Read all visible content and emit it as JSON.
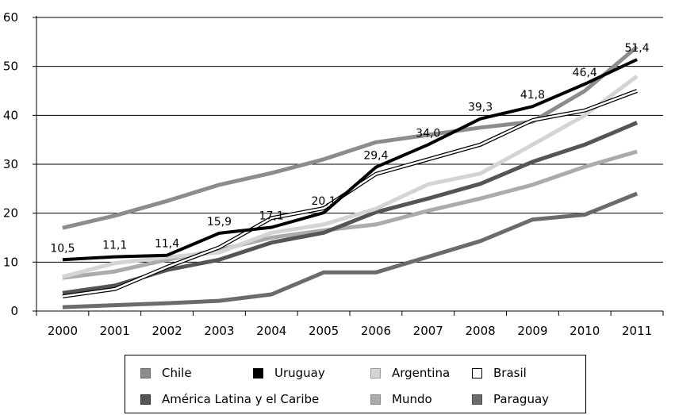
{
  "chart_data": {
    "type": "line",
    "title": "",
    "xlabel": "",
    "ylabel": "",
    "categories": [
      "2000",
      "2001",
      "2002",
      "2003",
      "2004",
      "2005",
      "2006",
      "2007",
      "2008",
      "2009",
      "2010",
      "2011"
    ],
    "ylim": [
      0,
      60
    ],
    "yticks": [
      "0",
      "10",
      "20",
      "30",
      "40",
      "50",
      "60"
    ],
    "grid": true,
    "legend_position": "bottom",
    "series": [
      {
        "name": "Chile",
        "color": "#8c8c8c",
        "values": [
          17.0,
          19.5,
          22.5,
          25.8,
          28.2,
          31.0,
          34.5,
          36.0,
          37.5,
          38.7,
          45.0,
          54.0
        ]
      },
      {
        "name": "Uruguay",
        "color": "#000000",
        "values": [
          10.5,
          11.1,
          11.4,
          15.9,
          17.1,
          20.1,
          29.4,
          34.0,
          39.3,
          41.8,
          46.4,
          51.4
        ],
        "labels": [
          "10,5",
          "11,1",
          "11,4",
          "15,9",
          "17,1",
          "20,1",
          "29,4",
          "34,0",
          "39,3",
          "41,8",
          "46,4",
          "51,4"
        ]
      },
      {
        "name": "Argentina",
        "color": "#d4d4d4",
        "values": [
          7.0,
          9.8,
          11.0,
          12.0,
          16.0,
          17.7,
          20.9,
          25.9,
          28.1,
          34.0,
          40.0,
          48.0
        ]
      },
      {
        "name": "Brasil",
        "color": "#ffffff",
        "values": [
          3.0,
          4.5,
          9.0,
          13.0,
          19.0,
          21.0,
          28.0,
          31.0,
          34.0,
          39.0,
          41.0,
          45.0
        ]
      },
      {
        "name": "América Latina y el Caribe",
        "color": "#555555",
        "values": [
          3.7,
          5.2,
          8.4,
          10.5,
          14.0,
          16.0,
          20.2,
          23.0,
          26.0,
          30.5,
          34.0,
          38.5
        ]
      },
      {
        "name": "Mundo",
        "color": "#ababab",
        "values": [
          6.8,
          8.1,
          10.5,
          12.5,
          15.0,
          16.5,
          17.7,
          20.5,
          23.0,
          25.8,
          29.5,
          32.6
        ]
      },
      {
        "name": "Paraguay",
        "color": "#6b6b6b",
        "values": [
          0.8,
          1.2,
          1.6,
          2.1,
          3.4,
          7.9,
          7.9,
          11.1,
          14.3,
          18.7,
          19.7,
          24.0
        ]
      }
    ]
  },
  "legend": {
    "items": [
      {
        "name": "Chile",
        "fill": "#8c8c8c",
        "border": "#6a6a6a"
      },
      {
        "name": "Uruguay",
        "fill": "#000000",
        "border": "#000000"
      },
      {
        "name": "Argentina",
        "fill": "#d4d4d4",
        "border": "#9a9a9a"
      },
      {
        "name": "Brasil",
        "fill": "#ffffff",
        "border": "#000000"
      },
      {
        "name": "América Latina y el Caribe",
        "fill": "#555555",
        "border": "#333333"
      },
      {
        "name": "Mundo",
        "fill": "#ababab",
        "border": "#8a8a8a"
      },
      {
        "name": "Paraguay",
        "fill": "#6b6b6b",
        "border": "#4a4a4a"
      }
    ]
  }
}
